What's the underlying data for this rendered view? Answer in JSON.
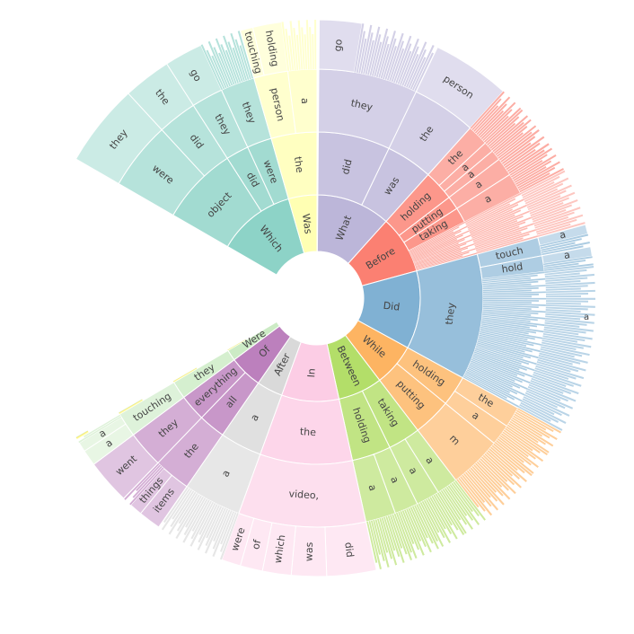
{
  "chart_data": {
    "type": "sunburst",
    "center_hole": true,
    "nodes": [
      {
        "label": "What",
        "color": "#bcb6d9",
        "start": 0.7,
        "end": 63.0,
        "children": [
          {
            "label": "did",
            "start": 0.7,
            "end": 38.5,
            "children": [
              {
                "label": "they",
                "start": 0.7,
                "end": 38.5,
                "children": [
                  {
                    "label": "go",
                    "start": 0.7,
                    "end": 14.0,
                    "children": []
                  }
                ]
              }
            ]
          },
          {
            "label": "was",
            "start": 38.5,
            "end": 63.0,
            "children": [
              {
                "label": "the",
                "start": 38.5,
                "end": 63.0,
                "children": [
                  {
                    "label": "person",
                    "start": 38.5,
                    "end": 63.0,
                    "children": []
                  }
                ]
              }
            ]
          }
        ]
      },
      {
        "label": "Before",
        "color": "#fb8072",
        "start": 63.0,
        "end": 112.0,
        "children": [
          {
            "label": "holding",
            "start": 63.0,
            "end": 79.0,
            "children": [
              {
                "label": "the",
                "start": 63.0,
                "end": 71.0,
                "children": []
              },
              {
                "label": "a",
                "start": 71.0,
                "end": 75.0,
                "children": []
              },
              {
                "label": "a",
                "start": 75.0,
                "end": 79.0,
                "children": []
              }
            ]
          },
          {
            "label": "putting",
            "start": 79.0,
            "end": 86.0,
            "children": [
              {
                "label": "a",
                "start": 79.0,
                "end": 86.0,
                "children": []
              }
            ]
          },
          {
            "label": "taking",
            "start": 86.0,
            "end": 94.0,
            "children": [
              {
                "label": "a",
                "start": 86.0,
                "end": 94.0,
                "children": []
              }
            ]
          }
        ]
      },
      {
        "label": "Did",
        "color": "#80b1d3",
        "start": 112.0,
        "end": 178.0,
        "children": [
          {
            "label": "they",
            "start": 112.0,
            "end": 178.0,
            "children": [
              {
                "label": "touch",
                "start": 112.0,
                "end": 119.0,
                "children": [
                  {
                    "label": "a",
                    "start": 112.0,
                    "end": 115.0,
                    "children": []
                  }
                ]
              },
              {
                "label": "hold",
                "start": 119.0,
                "end": 125.0,
                "children": [
                  {
                    "label": "a",
                    "start": 119.0,
                    "end": 122.0,
                    "children": []
                  }
                ]
              }
            ]
          }
        ]
      },
      {
        "label": "While",
        "color": "#fdb462",
        "start": 178.0,
        "end": 214.0,
        "children": [
          {
            "label": "holding",
            "start": 178.0,
            "end": 194.0,
            "children": [
              {
                "label": "the",
                "start": 178.0,
                "end": 186.0,
                "children": []
              },
              {
                "label": "a",
                "start": 186.0,
                "end": 194.0,
                "children": []
              }
            ]
          },
          {
            "label": "putting",
            "start": 194.0,
            "end": 214.0,
            "children": [
              {
                "label": "m",
                "start": 194.0,
                "end": 214.0,
                "children": []
              }
            ]
          }
        ]
      },
      {
        "label": "Between",
        "color": "#b3de69",
        "start": 214.0,
        "end": 251.5,
        "children": [
          {
            "label": "taking",
            "start": 214.0,
            "end": 231.0,
            "children": [
              {
                "label": "a",
                "start": 214.0,
                "end": 222.0,
                "children": []
              },
              {
                "label": "a",
                "start": 222.0,
                "end": 231.0,
                "children": []
              }
            ]
          },
          {
            "label": "holding",
            "start": 231.0,
            "end": 251.5,
            "children": [
              {
                "label": "a",
                "start": 231.0,
                "end": 240.0,
                "children": []
              },
              {
                "label": "a",
                "start": 240.0,
                "end": 251.5,
                "children": []
              }
            ]
          }
        ]
      },
      {
        "label": "In",
        "color": "#fccde5",
        "start": 251.5,
        "end": 300.0,
        "children": [
          {
            "label": "the",
            "start": 251.5,
            "end": 300.0,
            "children": [
              {
                "label": "video,",
                "start": 251.5,
                "end": 300.0,
                "children": [
                  {
                    "label": "did",
                    "start": 251.5,
                    "end": 267.0,
                    "children": []
                  },
                  {
                    "label": "was",
                    "start": 267.0,
                    "end": 278.0,
                    "children": []
                  },
                  {
                    "label": "which",
                    "start": 278.0,
                    "end": 287.0,
                    "children": []
                  },
                  {
                    "label": "of",
                    "start": 287.0,
                    "end": 294.0,
                    "children": []
                  },
                  {
                    "label": "were",
                    "start": 294.0,
                    "end": 300.0,
                    "children": []
                  }
                ]
              }
            ]
          }
        ]
      },
      {
        "label": "After",
        "color": "#d9d9d9",
        "start": 300.0,
        "end": 322.0,
        "children": [
          {
            "label": "a",
            "start": 300.0,
            "end": 322.0,
            "children": [
              {
                "label": "a",
                "start": 300.0,
                "end": 322.0,
                "children": []
              }
            ]
          }
        ]
      },
      {
        "label": "Of",
        "color": "#bc80bd",
        "start": 322.0,
        "end": 350.0,
        "children": [
          {
            "label": "all",
            "start": 322.0,
            "end": 336.0,
            "children": [
              {
                "label": "the",
                "start": 322.0,
                "end": 336.0,
                "children": [
                  {
                    "label": "items",
                    "start": 322.0,
                    "end": 329.0,
                    "children": []
                  },
                  {
                    "label": "things",
                    "start": 329.0,
                    "end": 333.0,
                    "children": []
                  }
                ]
              }
            ]
          },
          {
            "label": "everything",
            "start": 336.0,
            "end": 350.0,
            "children": [
              {
                "label": "they",
                "start": 336.0,
                "end": 350.0,
                "children": [
                  {
                    "label": "went",
                    "start": 336.0,
                    "end": 350.0,
                    "children": []
                  }
                ]
              }
            ]
          }
        ]
      },
      {
        "label": "Were",
        "color": "#ccebc5",
        "start": 350.0,
        "end": 359.3,
        "children": [
          {
            "label": "they",
            "start": 350.0,
            "end": 359.3,
            "children": [
              {
                "label": "touching",
                "start": 350.0,
                "end": 359.3,
                "children": [
                  {
                    "label": "a",
                    "start": 350.0,
                    "end": 355.0,
                    "children": []
                  },
                  {
                    "label": "a",
                    "start": 355.0,
                    "end": 358.0,
                    "children": []
                  }
                ]
              }
            ]
          }
        ]
      },
      {
        "label": "Which",
        "color": "#8dd3c7",
        "start": 450.0,
        "end": 516.0,
        "children": [
          {
            "label": "object",
            "start": 450.0,
            "end": 491.0,
            "children": [
              {
                "label": "were",
                "start": 450.0,
                "end": 476.0,
                "children": [
                  {
                    "label": "they",
                    "start": 450.0,
                    "end": 476.0,
                    "children": []
                  }
                ]
              },
              {
                "label": "did",
                "start": 476.0,
                "end": 491.0,
                "children": [
                  {
                    "label": "the",
                    "start": 476.0,
                    "end": 491.0,
                    "children": []
                  }
                ]
              }
            ]
          },
          {
            "label": "did",
            "start": 491.0,
            "end": 503.0,
            "children": [
              {
                "label": "they",
                "start": 491.0,
                "end": 503.0,
                "children": [
                  {
                    "label": "go",
                    "start": 491.0,
                    "end": 503.0,
                    "children": []
                  }
                ]
              }
            ]
          },
          {
            "label": "were",
            "start": 503.0,
            "end": 516.0,
            "children": [
              {
                "label": "they",
                "start": 503.0,
                "end": 516.0,
                "children": []
              }
            ]
          }
        ]
      },
      {
        "label": "Was",
        "color": "#ffffb3",
        "start": 516.0,
        "end": 540.0,
        "children": [
          {
            "label": "the",
            "start": 516.0,
            "end": 540.0,
            "children": [
              {
                "label": "person",
                "start": 516.0,
                "end": 529.0,
                "children": [
                  {
                    "label": "touching",
                    "start": 516.0,
                    "end": 520.0,
                    "children": []
                  },
                  {
                    "label": "holding",
                    "start": 520.0,
                    "end": 529.0,
                    "children": []
                  }
                ]
              },
              {
                "label": "a",
                "start": 529.0,
                "end": 540.0,
                "children": []
              }
            ]
          }
        ]
      }
    ],
    "extra_strips": [
      {
        "color": "#ffffb3",
        "start": 359.3,
        "end": 359.6
      },
      {
        "color": "#ffed6f",
        "start": 359.6,
        "end": 359.9
      },
      {
        "color": "#b3e2cd",
        "start": 359.9,
        "end": 360.0
      }
    ],
    "unlabeled_tail_label": "a"
  }
}
